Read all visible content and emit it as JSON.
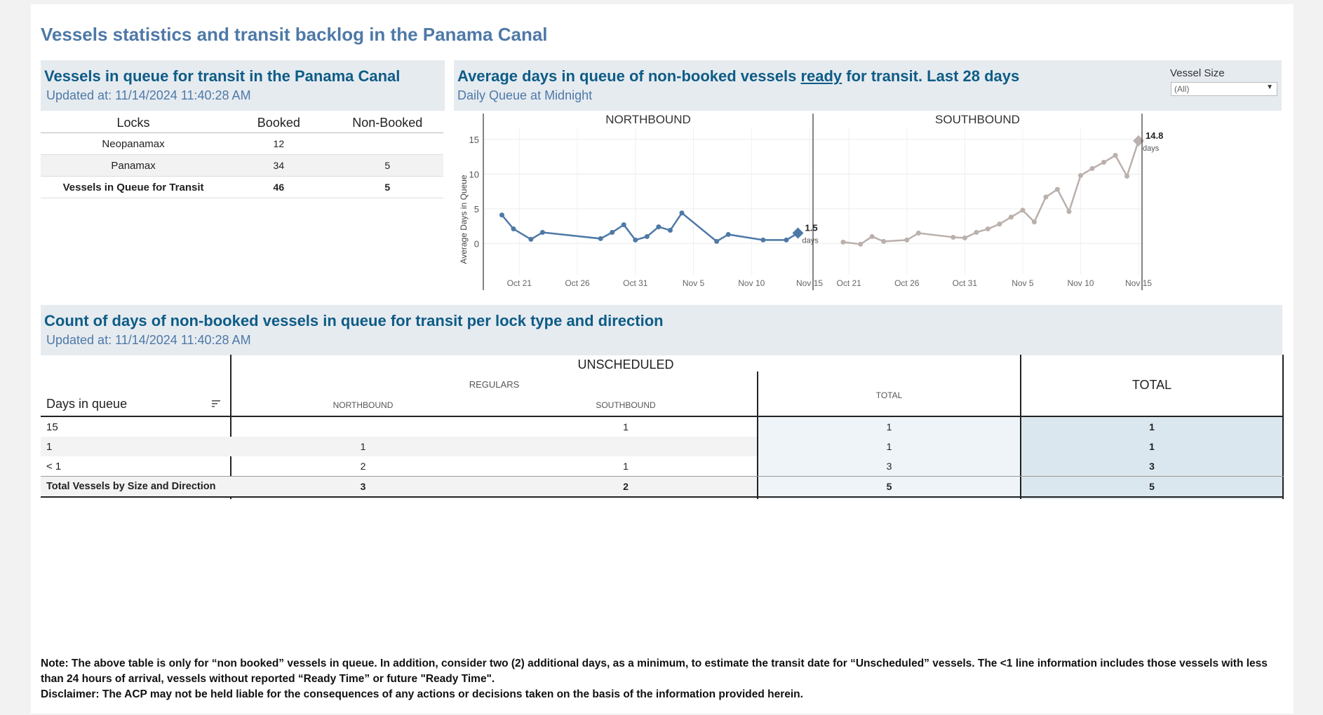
{
  "dashboard_title": "Vessels statistics and transit backlog in the Panama Canal",
  "queue_panel": {
    "title": "Vessels in queue for transit in the Panama Canal",
    "updated": "Updated at:  11/14/2024 11:40:28 AM",
    "columns": [
      "Locks",
      "Booked",
      "Non-Booked"
    ],
    "rows": [
      {
        "lock": "Neopanamax",
        "booked": "12",
        "non_booked": ""
      },
      {
        "lock": "Panamax",
        "booked": "34",
        "non_booked": "5"
      },
      {
        "lock": "Vessels in Queue for Transit",
        "booked": "46",
        "non_booked": "5"
      }
    ]
  },
  "avg_panel": {
    "title_pre": "Average days in queue of non-booked vessels ",
    "title_underlined": "ready",
    "title_post": " for transit. Last 28 days",
    "subtitle": "Daily Queue at Midnight",
    "filter_label": "Vessel Size",
    "filter_value": "(All)"
  },
  "chart_data": {
    "type": "line",
    "ylabel": "Average Days in Queue",
    "ylim": [
      -3.5,
      16.5
    ],
    "yticks": [
      "0",
      "5",
      "10",
      "15"
    ],
    "ytick_values": [
      0,
      5,
      10,
      15
    ],
    "xticks": [
      "Oct 21",
      "Oct 26",
      "Oct 31",
      "Nov 5",
      "Nov 10",
      "Nov 15"
    ],
    "xtick_days": [
      6,
      11,
      16,
      21,
      26,
      31
    ],
    "xlim": [
      2.9,
      31.3
    ],
    "panels": [
      {
        "name": "NORTHBOUND",
        "color": "#4e79a7",
        "last_label": "1.5",
        "last_unit": "days",
        "points": [
          {
            "day": 4.5,
            "y": 4.1
          },
          {
            "day": 5.5,
            "y": 2.1
          },
          {
            "day": 7,
            "y": 0.6
          },
          {
            "day": 8,
            "y": 1.6
          },
          {
            "day": 13,
            "y": 0.7
          },
          {
            "day": 14,
            "y": 1.6
          },
          {
            "day": 15,
            "y": 2.7
          },
          {
            "day": 16,
            "y": 0.5
          },
          {
            "day": 17,
            "y": 1
          },
          {
            "day": 18,
            "y": 2.4
          },
          {
            "day": 19,
            "y": 1.9
          },
          {
            "day": 20,
            "y": 4.4
          },
          {
            "day": 23,
            "y": 0.3
          },
          {
            "day": 24,
            "y": 1.3
          },
          {
            "day": 27,
            "y": 0.5
          },
          {
            "day": 29,
            "y": 0.5
          },
          {
            "day": 30,
            "y": 1.5
          }
        ]
      },
      {
        "name": "SOUTHBOUND",
        "color": "#bab0ac",
        "last_label": "14.8",
        "last_unit": "days",
        "points": [
          {
            "day": 5.5,
            "y": 0.2
          },
          {
            "day": 7,
            "y": -0.1
          },
          {
            "day": 8,
            "y": 1
          },
          {
            "day": 9,
            "y": 0.3
          },
          {
            "day": 11,
            "y": 0.5
          },
          {
            "day": 12,
            "y": 1.5
          },
          {
            "day": 15,
            "y": 0.9
          },
          {
            "day": 16,
            "y": 0.8
          },
          {
            "day": 17,
            "y": 1.6
          },
          {
            "day": 18,
            "y": 2.1
          },
          {
            "day": 19,
            "y": 2.8
          },
          {
            "day": 20,
            "y": 3.8
          },
          {
            "day": 21,
            "y": 4.8
          },
          {
            "day": 22,
            "y": 3.1
          },
          {
            "day": 23,
            "y": 6.7
          },
          {
            "day": 24,
            "y": 7.8
          },
          {
            "day": 25,
            "y": 4.6
          },
          {
            "day": 26,
            "y": 9.8
          },
          {
            "day": 27,
            "y": 10.8
          },
          {
            "day": 28,
            "y": 11.7
          },
          {
            "day": 29,
            "y": 12.7
          },
          {
            "day": 30,
            "y": 9.7
          },
          {
            "day": 31,
            "y": 14.8
          }
        ]
      }
    ]
  },
  "count_panel": {
    "title": "Count of days of non-booked vessels in queue for transit per lock type and direction",
    "updated": "Updated at:  11/14/2024 11:40:28 AM",
    "days_header": "Days in queue",
    "unscheduled": "UNSCHEDULED",
    "regulars": "REGULARS",
    "northbound": "NORTHBOUND",
    "southbound": "SOUTHBOUND",
    "total_sub": "TOTAL",
    "total": "TOTAL",
    "rows": [
      {
        "label": "15",
        "nb": "",
        "sb": "1",
        "tot": "1",
        "grand": "1"
      },
      {
        "label": "1",
        "nb": "1",
        "sb": "",
        "tot": "1",
        "grand": "1"
      },
      {
        "label": "< 1",
        "nb": "2",
        "sb": "1",
        "tot": "3",
        "grand": "3"
      },
      {
        "label": "Total Vessels by Size and Direction",
        "nb": "3",
        "sb": "2",
        "tot": "5",
        "grand": "5"
      }
    ]
  },
  "note": "Note:  The above table is only for “non booked” vessels in queue. In addition, consider two (2) additional days, as a minimum, to estimate the transit date for “Unscheduled” vessels.  The <1 line information includes those vessels with less than 24 hours of arrival, vessels without reported “Ready Time” or future \"Ready Time\".",
  "disclaimer": "Disclaimer: The ACP may not be held liable for the consequences of any actions or decisions taken on the basis of the information provided herein."
}
